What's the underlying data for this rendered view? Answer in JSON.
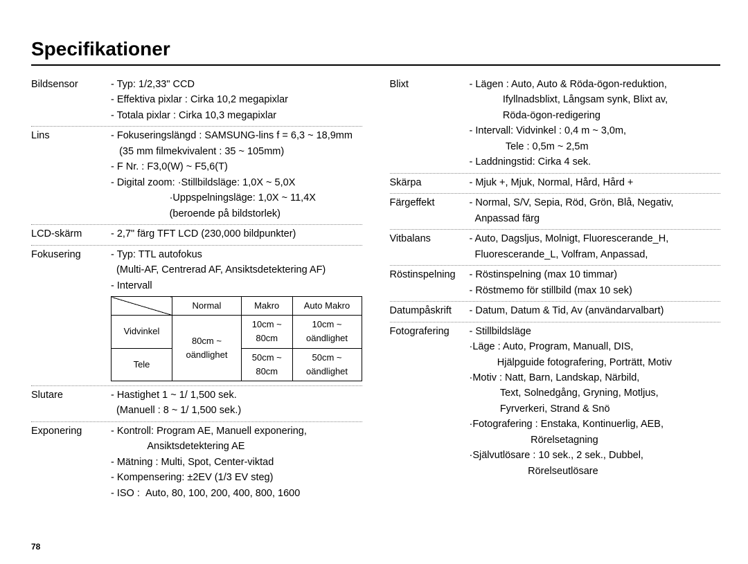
{
  "title": "Specifikationer",
  "page_number": "78",
  "left": [
    {
      "label": "Bildsensor",
      "lines": [
        "- Typ: 1/2,33\" CCD",
        "- Effektiva pixlar : Cirka 10,2 megapixlar",
        "- Totala pixlar : Cirka 10,3 megapixlar"
      ]
    },
    {
      "label": "Lins",
      "lines": [
        "- Fokuseringslängd : SAMSUNG-lins f = 6,3 ~ 18,9mm",
        "   (35 mm filmekvivalent : 35 ~ 105mm)",
        "- F Nr. : F3,0(W) ~ F5,6(T)",
        "- Digital zoom: ·Stillbildsläge: 1,0X ~ 5,0X",
        "                     ·Uppspelningsläge: 1,0X ~ 11,4X",
        "                     (beroende på bildstorlek)"
      ]
    },
    {
      "label": "LCD-skärm",
      "lines": [
        "- 2,7\" färg TFT LCD (230,000 bildpunkter)"
      ]
    },
    {
      "label": "Fokusering",
      "has_table": true,
      "lines_before": [
        "- Typ: TTL autofokus",
        "  (Multi-AF, Centrerad AF, Ansiktsdetektering AF)",
        "- Intervall"
      ],
      "table": {
        "headers": [
          "",
          "Normal",
          "Makro",
          "Auto Makro"
        ],
        "rows": [
          [
            "Vidvinkel",
            "80cm ~ oändlighet",
            "10cm ~ 80cm",
            "10cm ~ oändlighet"
          ],
          [
            "Tele",
            "",
            "50cm ~ 80cm",
            "50cm ~ oändlighet"
          ]
        ],
        "rowspan_col1": true
      }
    },
    {
      "label": "Slutare",
      "lines": [
        "- Hastighet 1 ~ 1/ 1,500 sek.",
        "  (Manuell : 8 ~ 1/ 1,500 sek.)"
      ]
    },
    {
      "label": "Exponering",
      "no_border": true,
      "lines": [
        "- Kontroll: Program AE, Manuell exponering,",
        "             Ansiktsdetektering AE",
        "- Mätning : Multi, Spot, Center-viktad",
        "- Kompensering: ±2EV (1/3 EV steg)",
        "- ISO :  Auto, 80, 100, 200, 400, 800, 1600"
      ]
    }
  ],
  "right": [
    {
      "label": "Blixt",
      "lines": [
        "- Lägen : Auto, Auto & Röda-ögon-reduktion,",
        "            Ifyllnadsblixt, Långsam synk, Blixt av,",
        "            Röda-ögon-redigering",
        "- Intervall: Vidvinkel : 0,4 m ~ 3,0m,",
        "             Tele : 0,5m ~ 2,5m",
        "- Laddningstid: Cirka 4 sek."
      ]
    },
    {
      "label": "Skärpa",
      "lines": [
        "- Mjuk +, Mjuk, Normal, Hård, Hård +"
      ]
    },
    {
      "label": "Färgeffekt",
      "lines": [
        "- Normal, S/V, Sepia, Röd, Grön, Blå, Negativ,",
        "  Anpassad färg"
      ]
    },
    {
      "label": "Vitbalans",
      "lines": [
        "- Auto, Dagsljus, Molnigt, Fluorescerande_H,",
        "  Fluorescerande_L, Volfram, Anpassad,"
      ]
    },
    {
      "label": "Röstinspelning",
      "lines": [
        "- Röstinspelning (max 10 timmar)",
        "- Röstmemo för stillbild (max 10 sek)"
      ]
    },
    {
      "label": "Datumpåskrift",
      "lines": [
        "- Datum, Datum & Tid, Av (användarvalbart)"
      ]
    },
    {
      "label": "Fotografering",
      "no_border": true,
      "lines": [
        "- Stillbildsläge",
        "·Läge : Auto, Program, Manuall, DIS,",
        "          Hjälpguide fotografering, Porträtt, Motiv",
        "·Motiv : Natt, Barn, Landskap, Närbild,",
        "           Text, Solnedgång, Gryning, Motljus,",
        "           Fyrverkeri, Strand & Snö",
        "·Fotografering : Enstaka, Kontinuerlig, AEB,",
        "                      Rörelsetagning",
        "·Självutlösare : 10 sek., 2 sek., Dubbel,",
        "                     Rörelseutlösare"
      ]
    }
  ]
}
